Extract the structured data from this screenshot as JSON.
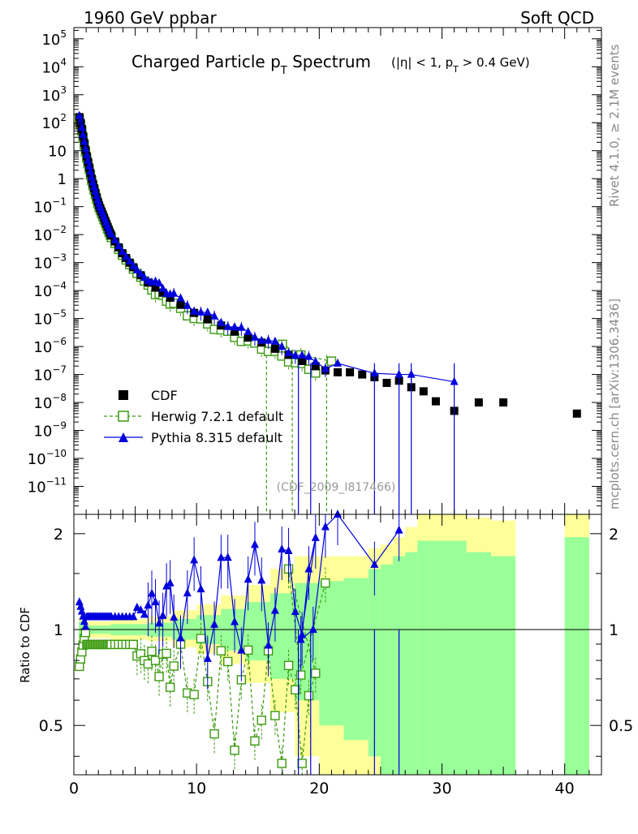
{
  "header": {
    "left": "1960 GeV ppbar",
    "right": "Soft QCD"
  },
  "side_labels": {
    "rivet": "Rivet 4.1.0, ≥ 2.1M events",
    "mcplots": "mcplots.cern.ch [arXiv:1306.3436]"
  },
  "chart_data": {
    "type": "scatter",
    "title": "Charged Particle p_T Spectrum",
    "title_main_pre": "Charged Particle p",
    "title_main_sub": "T",
    "title_main_post": " Spectrum",
    "title_cut": "(|η| < 1, p_T > 0.4 GeV)",
    "title_cut_pre": "(|η| < 1, p",
    "title_cut_sub": "T",
    "title_cut_post": " > 0.4 GeV)",
    "analysis_id": "(CDF_2009_I817466)",
    "xlim": [
      0,
      43
    ],
    "ylim_log10": [
      -12,
      5.4
    ],
    "x_ticks": [
      0,
      10,
      20,
      30,
      40
    ],
    "y_tick_labels": [
      {
        "label": "10",
        "exp": "5",
        "v": 5
      },
      {
        "label": "10",
        "exp": "4",
        "v": 4
      },
      {
        "label": "10",
        "exp": "3",
        "v": 3
      },
      {
        "label": "10",
        "exp": "2",
        "v": 2
      },
      {
        "label": "10",
        "exp": "",
        "v": 1
      },
      {
        "label": "1",
        "exp": "",
        "v": 0
      },
      {
        "label": "10",
        "exp": "−1",
        "v": -1
      },
      {
        "label": "10",
        "exp": "−2",
        "v": -2
      },
      {
        "label": "10",
        "exp": "−3",
        "v": -3
      },
      {
        "label": "10",
        "exp": "−4",
        "v": -4
      },
      {
        "label": "10",
        "exp": "−5",
        "v": -5
      },
      {
        "label": "10",
        "exp": "−6",
        "v": -6
      },
      {
        "label": "10",
        "exp": "−7",
        "v": -7
      },
      {
        "label": "10",
        "exp": "−8",
        "v": -8
      },
      {
        "label": "10",
        "exp": "−9",
        "v": -9
      },
      {
        "label": "10",
        "exp": "−10",
        "v": -10
      },
      {
        "label": "10",
        "exp": "−11",
        "v": -11
      }
    ],
    "legend": [
      {
        "name": "CDF",
        "color": "#000000",
        "marker": "square"
      },
      {
        "name": "Herwig 7.2.1 default",
        "color": "#3a9a0e",
        "marker": "open-square",
        "dash": true
      },
      {
        "name": "Pythia 8.315 default",
        "color": "#0000dd",
        "marker": "triangle"
      }
    ],
    "cdf_tail": [
      {
        "x": 20.5,
        "y": 1.4e-07
      },
      {
        "x": 21.5,
        "y": 1.2e-07
      },
      {
        "x": 22.5,
        "y": 1.2e-07
      },
      {
        "x": 23.5,
        "y": 1e-07
      },
      {
        "x": 24.5,
        "y": 8e-08
      },
      {
        "x": 25.5,
        "y": 5e-08
      },
      {
        "x": 26.5,
        "y": 6e-08
      },
      {
        "x": 27.5,
        "y": 3.5e-08
      },
      {
        "x": 28.5,
        "y": 2.5e-08
      },
      {
        "x": 29.5,
        "y": 1.1e-08
      },
      {
        "x": 31.0,
        "y": 5e-09
      },
      {
        "x": 33.0,
        "y": 1e-08
      },
      {
        "x": 35.0,
        "y": 1e-08
      },
      {
        "x": 41.0,
        "y": 4e-09
      }
    ],
    "pythia_tail": [
      {
        "x": 20.5,
        "y": 1.6e-07
      },
      {
        "x": 21.5,
        "y": 2.5e-07
      },
      {
        "x": 24.5,
        "y": 1.1e-07
      },
      {
        "x": 26.5,
        "y": 1e-07
      },
      {
        "x": 27.5,
        "y": 1e-07
      },
      {
        "x": 31.0,
        "y": 5.5e-08
      }
    ],
    "herwig_tail": [
      {
        "x": 17.0,
        "y": 1.2e-06
      },
      {
        "x": 18.5,
        "y": 5e-07
      },
      {
        "x": 21.0,
        "y": 3e-07
      }
    ],
    "ratio": {
      "ylabel": "Ratio to CDF",
      "ylim": [
        0.35,
        2.3
      ],
      "y_ticks": [
        0.5,
        1,
        2
      ],
      "y_tick_labels": [
        "0.5",
        "1",
        "2"
      ],
      "pythia_tail": [
        {
          "x": 18.5,
          "y": 0.93
        },
        {
          "x": 19.5,
          "y": 1.0
        },
        {
          "x": 20.5,
          "y": 2.1
        },
        {
          "x": 21.5,
          "y": 2.3
        },
        {
          "x": 24.5,
          "y": 1.6
        },
        {
          "x": 26.5,
          "y": 2.05
        }
      ],
      "herwig_tail": [
        {
          "x": 17.5,
          "y": 1.55
        },
        {
          "x": 18.5,
          "y": 0.72
        },
        {
          "x": 20.5,
          "y": 1.4
        }
      ]
    }
  }
}
